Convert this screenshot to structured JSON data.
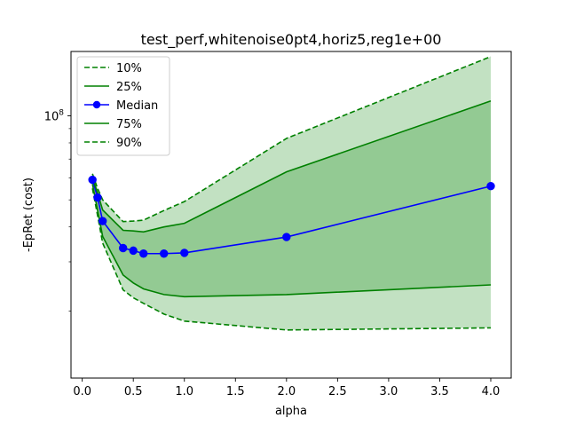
{
  "chart_data": {
    "type": "line",
    "title": "test_perf,whitenoise0pt4,horiz5,reg1e+00",
    "xlabel": "alpha",
    "ylabel": "-EpRet (cost)",
    "yscale": "log",
    "xlim": [
      -0.11,
      4.2
    ],
    "ylim": [
      11500000,
      170000000
    ],
    "x_ticks": [
      0.0,
      0.5,
      1.0,
      1.5,
      2.0,
      2.5,
      3.0,
      3.5,
      4.0
    ],
    "x_tick_labels": [
      "0.0",
      "0.5",
      "1.0",
      "1.5",
      "2.0",
      "2.5",
      "3.0",
      "3.5",
      "4.0"
    ],
    "y_ticks": [
      100000000
    ],
    "y_tick_labels": [
      "10^8"
    ],
    "x": [
      0.1,
      0.15,
      0.2,
      0.4,
      0.5,
      0.6,
      0.8,
      1.0,
      2.0,
      4.0
    ],
    "series": [
      {
        "name": "10%",
        "values": [
          55000000,
          44000000,
          35000000,
          23800000,
          22300000,
          21300000,
          19500000,
          18400000,
          17100000,
          17400000
        ],
        "color": "#008000",
        "dash": "dashed",
        "marker": "none"
      },
      {
        "name": "25%",
        "values": [
          57000000,
          46000000,
          37000000,
          26900000,
          25200000,
          24000000,
          22900000,
          22500000,
          22900000,
          24800000
        ],
        "color": "#008000",
        "dash": "solid",
        "marker": "none"
      },
      {
        "name": "Median",
        "values": [
          59000000,
          51000000,
          42000000,
          33600000,
          32900000,
          32100000,
          32100000,
          32300000,
          36800000,
          56000000
        ],
        "color": "#0000ff",
        "dash": "solid",
        "marker": "circle"
      },
      {
        "name": "75%",
        "values": [
          60000000,
          53000000,
          46000000,
          38900000,
          38700000,
          38400000,
          40000000,
          41200000,
          63000000,
          113000000
        ],
        "color": "#008000",
        "dash": "solid",
        "marker": "none"
      },
      {
        "name": "90%",
        "values": [
          62000000,
          55000000,
          50000000,
          41800000,
          42000000,
          42300000,
          45800000,
          49300000,
          83000000,
          163000000
        ],
        "color": "#008000",
        "dash": "dashed",
        "marker": "none"
      }
    ],
    "bands": [
      {
        "lower": "10%",
        "upper": "90%",
        "color": "#008000",
        "opacity": 0.24
      },
      {
        "lower": "25%",
        "upper": "75%",
        "color": "#008000",
        "opacity": 0.24
      }
    ],
    "grid": false,
    "legend": "upper-left"
  }
}
